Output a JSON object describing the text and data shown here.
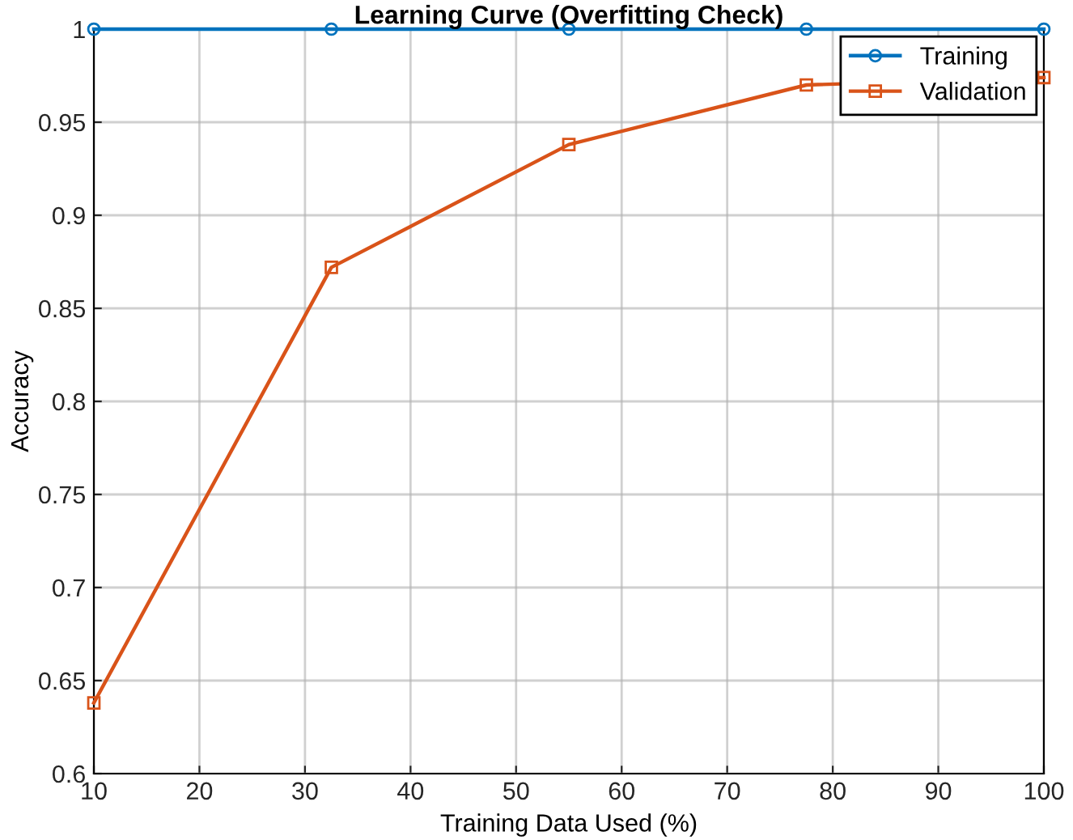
{
  "chart_data": {
    "type": "line",
    "title": "Learning Curve (Overfitting Check)",
    "xlabel": "Training Data Used (%)",
    "ylabel": "Accuracy",
    "x": [
      10,
      32.5,
      55,
      77.5,
      100
    ],
    "series": [
      {
        "name": "Training",
        "color": "#0072bd",
        "values": [
          1,
          1,
          1,
          1,
          1
        ],
        "marker": "circle"
      },
      {
        "name": "Validation",
        "color": "#d95319",
        "values": [
          0.638,
          0.872,
          0.938,
          0.97,
          0.974
        ],
        "marker": "square"
      }
    ],
    "xlim": [
      10,
      100
    ],
    "xticks": [
      10,
      20,
      30,
      40,
      50,
      60,
      70,
      80,
      90,
      100
    ],
    "ylim": [
      0.6,
      1
    ],
    "yticks": [
      0.6,
      0.65,
      0.7,
      0.75,
      0.8,
      0.85,
      0.9,
      0.95,
      1
    ],
    "grid": true,
    "legend": "top right",
    "line_style": "solid"
  }
}
